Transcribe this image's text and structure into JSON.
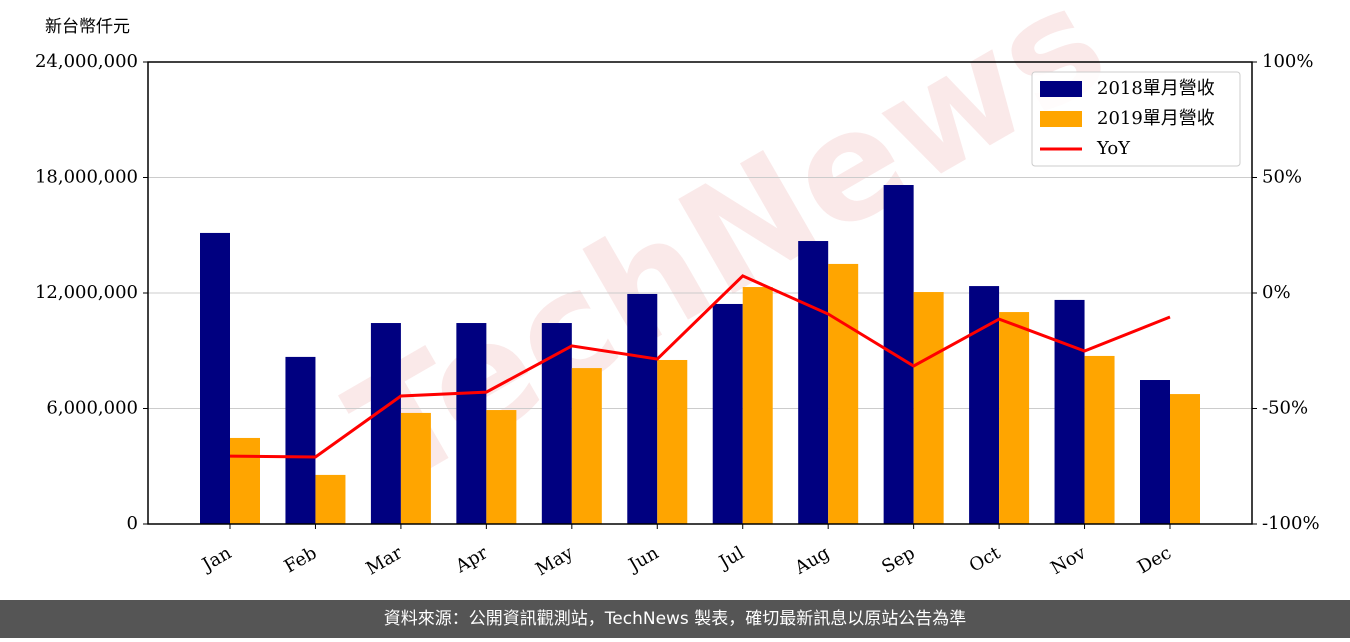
{
  "chart_data": {
    "type": "bar-line",
    "y_label": "新台幣仟元",
    "watermark": "TechNews",
    "footer": "資料來源：公開資訊觀測站，TechNews 製表，確切最新訊息以原站公告為準",
    "categories": [
      "Jan",
      "Feb",
      "Mar",
      "Apr",
      "May",
      "Jun",
      "Jul",
      "Aug",
      "Sep",
      "Oct",
      "Nov",
      "Dec"
    ],
    "series": [
      {
        "name": "2018單月營收",
        "type": "bar",
        "color": "#000080",
        "values": [
          15120000,
          8680000,
          10440000,
          10440000,
          10440000,
          11950000,
          11430000,
          14700000,
          17610000,
          12360000,
          11640000,
          7480000
        ]
      },
      {
        "name": "2019單月營收",
        "type": "bar",
        "color": "#ffa500",
        "values": [
          4470000,
          2550000,
          5770000,
          5920000,
          8100000,
          8520000,
          12310000,
          13510000,
          12050000,
          11010000,
          8730000,
          6750000
        ]
      },
      {
        "name": "YoY",
        "type": "line",
        "axis": "y2",
        "color": "#ff0000",
        "values": [
          -70.6,
          -71.0,
          -44.6,
          -42.9,
          -22.9,
          -28.6,
          7.4,
          -9.1,
          -31.6,
          -11.3,
          -25.1,
          -10.4
        ]
      }
    ],
    "ylim": [
      0,
      24000000
    ],
    "yticks": [
      0,
      {
        "value": 6000000,
        "label": "6,000,000"
      },
      {
        "value": 12000000,
        "label": "12,000,000"
      },
      {
        "value": 18000000,
        "label": "18,000,000"
      },
      {
        "value": 24000000,
        "label": "24,000,000"
      }
    ],
    "y2lim": [
      -100,
      100
    ],
    "y2ticks": [
      {
        "value": -100,
        "label": "-100%"
      },
      {
        "value": -50,
        "label": "-50%"
      },
      {
        "value": 0,
        "label": "0%"
      },
      {
        "value": 50,
        "label": "50%"
      },
      {
        "value": 100,
        "label": "100%"
      }
    ],
    "grid": true,
    "legend": "upper right"
  }
}
